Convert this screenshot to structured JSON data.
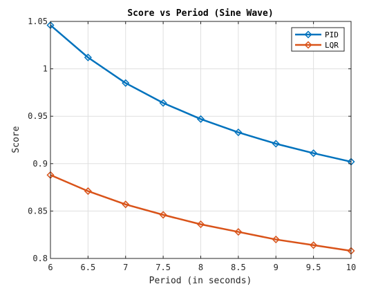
{
  "chart_data": {
    "type": "line",
    "title": "Score vs Period (Sine Wave)",
    "xlabel": "Period (in seconds)",
    "ylabel": "Score",
    "xlim": [
      6,
      10
    ],
    "ylim": [
      0.8,
      1.05
    ],
    "xticks": [
      6,
      6.5,
      7,
      7.5,
      8,
      8.5,
      9,
      9.5,
      10
    ],
    "xtick_labels": [
      "6",
      "6.5",
      "7",
      "7.5",
      "8",
      "8.5",
      "9",
      "9.5",
      "10"
    ],
    "yticks": [
      0.8,
      0.85,
      0.9,
      0.95,
      1,
      1.05
    ],
    "ytick_labels": [
      "0.8",
      "0.85",
      "0.9",
      "0.95",
      "1",
      "1.05"
    ],
    "grid": true,
    "legend_position": "top-right",
    "x": [
      6,
      6.5,
      7,
      7.5,
      8,
      8.5,
      9,
      9.5,
      10
    ],
    "series": [
      {
        "name": "PID",
        "color": "#0072BD",
        "marker": "diamond",
        "values": [
          1.046,
          1.012,
          0.985,
          0.964,
          0.947,
          0.933,
          0.921,
          0.911,
          0.902
        ]
      },
      {
        "name": "LQR",
        "color": "#D95319",
        "marker": "diamond",
        "values": [
          0.888,
          0.871,
          0.857,
          0.846,
          0.836,
          0.828,
          0.82,
          0.814,
          0.808
        ]
      }
    ]
  }
}
